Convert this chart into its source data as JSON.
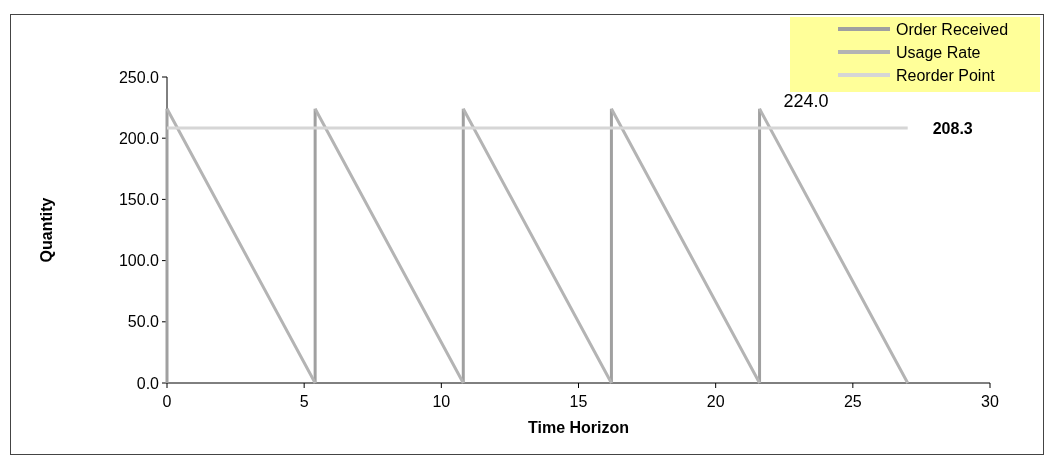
{
  "chart_data": {
    "type": "line",
    "xlabel": "Time Horizon",
    "ylabel": "Quantity",
    "xlim": [
      0,
      30
    ],
    "xticks": [
      0,
      5,
      10,
      15,
      20,
      25,
      30
    ],
    "ylim": [
      0,
      250
    ],
    "yticks": [
      {
        "value": 0,
        "label": "0.0"
      },
      {
        "value": 50,
        "label": "50.0"
      },
      {
        "value": 100,
        "label": "100.0"
      },
      {
        "value": 150,
        "label": "150.0"
      },
      {
        "value": 200,
        "label": "200.0"
      },
      {
        "value": 250,
        "label": "250.0"
      }
    ],
    "grid": false,
    "legend": "top right",
    "marker": "none",
    "line_style": "solid",
    "series": [
      {
        "name": "Order Received",
        "color": "#a0a0a0",
        "x": [
          0,
          0,
          5.4,
          5.4,
          10.8,
          10.8,
          16.2,
          16.2,
          21.6,
          21.6
        ],
        "values": [
          0,
          224,
          0,
          224,
          0,
          224,
          0,
          224,
          0,
          224
        ]
      },
      {
        "name": "Usage Rate",
        "color": "#b4b4b4",
        "x": [
          0,
          5.4,
          5.4,
          10.8,
          10.8,
          16.2,
          16.2,
          21.6,
          21.6,
          27
        ],
        "values": [
          224,
          0,
          224,
          0,
          224,
          0,
          224,
          0,
          224,
          0
        ]
      },
      {
        "name": "Reorder Point",
        "color": "#d6d6d6",
        "x": [
          0,
          27
        ],
        "values": [
          208.3,
          208.3
        ],
        "value_labels": [
          null,
          "208.3"
        ]
      }
    ],
    "annotations": [
      {
        "text": "224.0",
        "x": 21.6,
        "y": 224
      }
    ]
  }
}
